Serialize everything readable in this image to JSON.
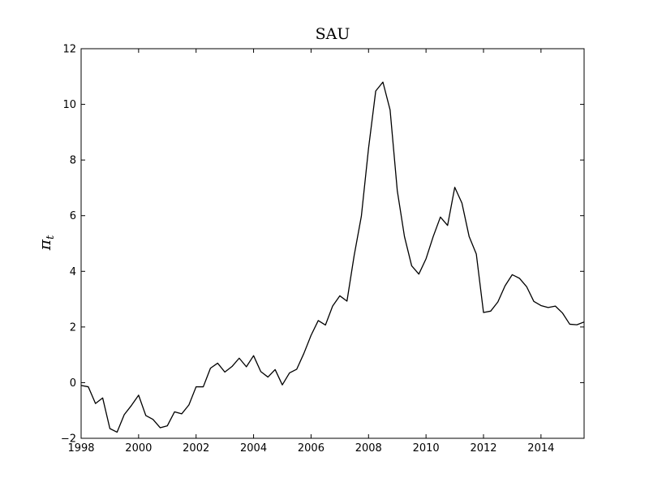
{
  "chart_data": {
    "type": "line",
    "title": "SAU",
    "xlabel": "",
    "ylabel": "π_t",
    "xlim": [
      1998,
      2015.5
    ],
    "ylim": [
      -2,
      12
    ],
    "xticks": [
      1998,
      2000,
      2002,
      2004,
      2006,
      2008,
      2010,
      2012,
      2014
    ],
    "xtick_labels": [
      "1998",
      "2000",
      "2002",
      "2004",
      "2006",
      "2008",
      "2010",
      "2012",
      "2014"
    ],
    "yticks": [
      -2,
      0,
      2,
      4,
      6,
      8,
      10,
      12
    ],
    "ytick_labels": [
      "−2",
      "0",
      "2",
      "4",
      "6",
      "8",
      "10",
      "12"
    ],
    "grid": false,
    "line_color": "#000000",
    "series": [
      {
        "x": [
          1998.0,
          1998.25,
          1998.5,
          1998.75,
          1999.0,
          1999.25,
          1999.5,
          1999.75,
          2000.0,
          2000.25,
          2000.5,
          2000.75,
          2001.0,
          2001.25,
          2001.5,
          2001.75,
          2002.0,
          2002.25,
          2002.5,
          2002.75,
          2003.0,
          2003.25,
          2003.5,
          2003.75,
          2004.0,
          2004.25,
          2004.5,
          2004.75,
          2005.0,
          2005.25,
          2005.5,
          2005.75,
          2006.0,
          2006.25,
          2006.5,
          2006.75,
          2007.0,
          2007.25,
          2007.5,
          2007.75,
          2008.0,
          2008.25,
          2008.5,
          2008.75,
          2009.0,
          2009.25,
          2009.5,
          2009.75,
          2010.0,
          2010.25,
          2010.5,
          2010.75,
          2011.0,
          2011.25,
          2011.5,
          2011.75,
          2012.0,
          2012.25,
          2012.5,
          2012.75,
          2013.0,
          2013.25,
          2013.5,
          2013.75,
          2014.0,
          2014.25,
          2014.5,
          2014.75,
          2015.0,
          2015.25,
          2015.5
        ],
        "y": [
          -0.1,
          -0.15,
          -0.75,
          -0.55,
          -1.65,
          -1.78,
          -1.15,
          -0.82,
          -0.45,
          -1.18,
          -1.32,
          -1.62,
          -1.55,
          -1.05,
          -1.12,
          -0.8,
          -0.15,
          -0.15,
          0.52,
          0.7,
          0.38,
          0.58,
          0.88,
          0.57,
          0.97,
          0.4,
          0.2,
          0.47,
          -0.08,
          0.35,
          0.48,
          1.05,
          1.7,
          2.23,
          2.07,
          2.75,
          3.12,
          2.93,
          4.57,
          5.98,
          8.42,
          10.48,
          10.8,
          9.8,
          6.9,
          5.25,
          4.2,
          3.9,
          4.45,
          5.25,
          5.95,
          5.65,
          7.02,
          6.45,
          5.25,
          4.62,
          2.52,
          2.57,
          2.9,
          3.48,
          3.88,
          3.75,
          3.45,
          2.92,
          2.77,
          2.7,
          2.75,
          2.5,
          2.1,
          2.08,
          2.18
        ]
      }
    ]
  }
}
